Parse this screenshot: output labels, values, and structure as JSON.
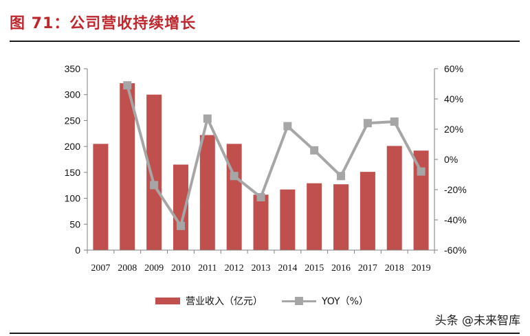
{
  "figure": {
    "title": "图  71：公司营收持续增长",
    "watermark": "头条 @未来智库"
  },
  "colors": {
    "title": "#c0272d",
    "bar": "#c0504d",
    "line": "#a6a6a6",
    "axis": "#7f7f7f"
  },
  "chart_data": {
    "type": "bar+line",
    "categories": [
      "2007",
      "2008",
      "2009",
      "2010",
      "2011",
      "2012",
      "2013",
      "2014",
      "2015",
      "2016",
      "2017",
      "2018",
      "2019"
    ],
    "series": [
      {
        "name": "营业收入（亿元）",
        "type": "bar",
        "axis": "left",
        "values": [
          205,
          322,
          300,
          165,
          222,
          205,
          107,
          117,
          129,
          127,
          151,
          201,
          192
        ]
      },
      {
        "name": "YOY（%）",
        "type": "line",
        "axis": "right",
        "values": [
          null,
          49,
          -17,
          -44,
          27,
          -11,
          -25,
          22,
          6,
          -11,
          24,
          25,
          -8
        ]
      }
    ],
    "y_left": {
      "min": 0,
      "max": 350,
      "step": 50,
      "ticks": [
        "0",
        "50",
        "100",
        "150",
        "200",
        "250",
        "300",
        "350"
      ]
    },
    "y_right": {
      "min": -60,
      "max": 60,
      "step": 20,
      "ticks": [
        "-60%",
        "-40%",
        "-20%",
        "0%",
        "20%",
        "40%",
        "60%"
      ]
    },
    "grid": false,
    "legend_position": "bottom"
  }
}
